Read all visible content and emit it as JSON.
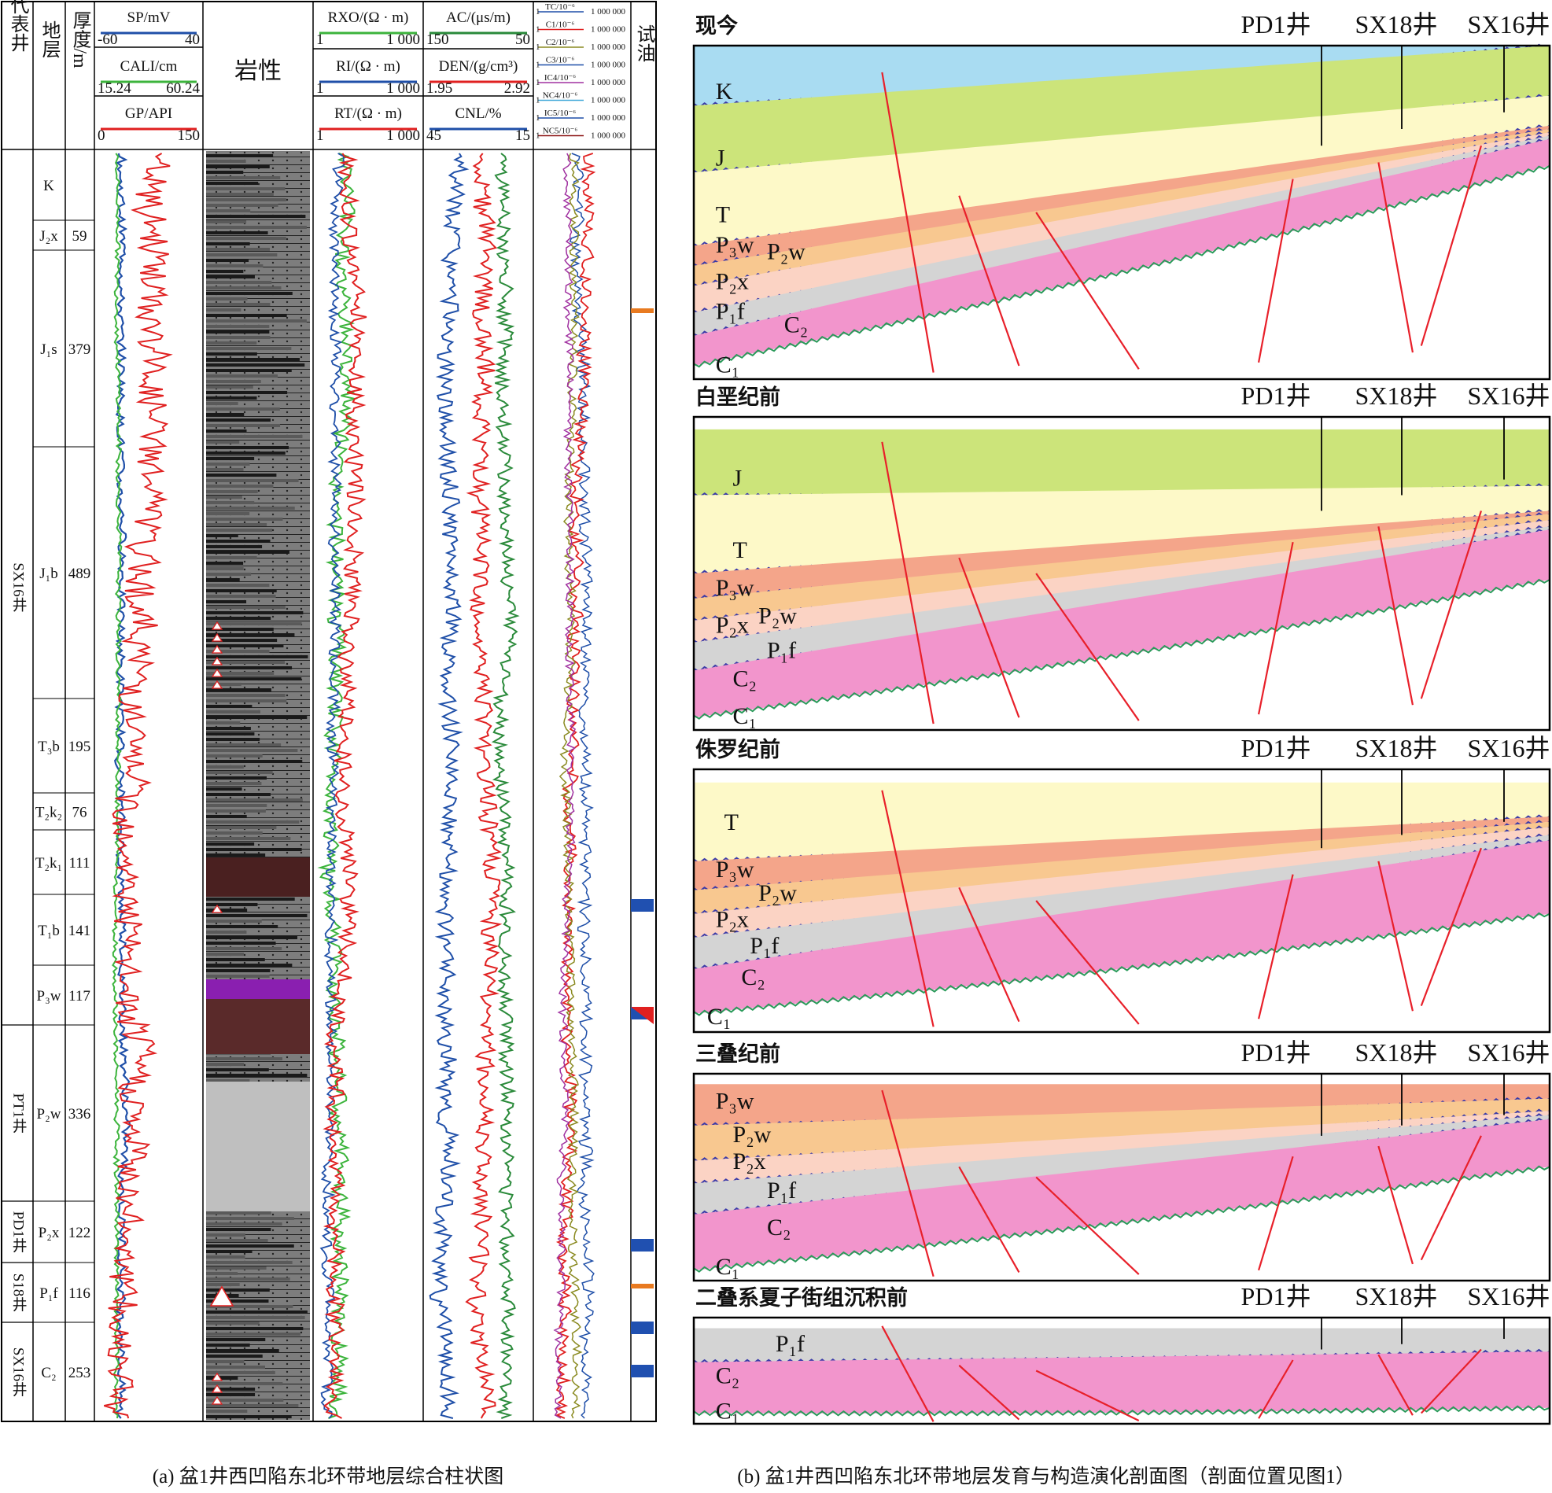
{
  "left_panel": {
    "header": {
      "well_col": "代表井",
      "strata_col": "地层",
      "thickness_col": "厚度/m",
      "litho_col": "岩性",
      "oil_test_col": "试油",
      "tracks": [
        {
          "name": "SP/mV",
          "min": "-60",
          "max": "40",
          "color": "#1f4fa8"
        },
        {
          "name": "CALI/cm",
          "min": "15.24",
          "max": "60.24",
          "color": "#3cb43c"
        },
        {
          "name": "GP/API",
          "min": "0",
          "max": "150",
          "color": "#e02020"
        },
        {
          "name": "RXO/(Ω · m)",
          "min": "1",
          "max": "1 000",
          "color": "#3cb43c"
        },
        {
          "name": "RI/(Ω · m)",
          "min": "1",
          "max": "1 000",
          "color": "#1f4fa8"
        },
        {
          "name": "RT/(Ω · m)",
          "min": "1",
          "max": "1 000",
          "color": "#e02020"
        },
        {
          "name": "AC/(μs/m)",
          "min": "150",
          "max": "50",
          "color": "#2a8a3a"
        },
        {
          "name": "DEN/(g/cm³)",
          "min": "1.95",
          "max": "2.92",
          "color": "#e02020"
        },
        {
          "name": "CNL/%",
          "min": "45",
          "max": "15",
          "color": "#1f4fa8"
        }
      ],
      "gas_tracks": [
        {
          "name": "TC/10⁻⁶",
          "max": "1 000 000",
          "color": "#1f4fa8"
        },
        {
          "name": "C1/10⁻⁶",
          "max": "1 000 000",
          "color": "#e02020"
        },
        {
          "name": "C2/10⁻⁶",
          "max": "1 000 000",
          "color": "#8a8a20"
        },
        {
          "name": "C3/10⁻⁶",
          "max": "1 000 000",
          "color": "#1f4fa8"
        },
        {
          "name": "IC4/10⁻⁶",
          "max": "1 000 000",
          "color": "#a030a0"
        },
        {
          "name": "NC4/10⁻⁶",
          "max": "1 000 000",
          "color": "#40a8d8"
        },
        {
          "name": "IC5/10⁻⁶",
          "max": "1 000 000",
          "color": "#1f4fa8"
        },
        {
          "name": "NC5/10⁻⁶",
          "max": "1 000 000",
          "color": "#8a1010"
        }
      ],
      "gas_min": "1"
    },
    "wells": [
      "SX16井",
      "PT1井",
      "PD1井",
      "S18井",
      "SX16井"
    ],
    "strata": [
      {
        "name": "K",
        "thickness": ""
      },
      {
        "name": "J₂x",
        "thickness": "59"
      },
      {
        "name": "J₁s",
        "thickness": "379"
      },
      {
        "name": "J₁b",
        "thickness": "489"
      },
      {
        "name": "T₃b",
        "thickness": "195"
      },
      {
        "name": "T₂k₂",
        "thickness": "76"
      },
      {
        "name": "T₂k₁",
        "thickness": "111"
      },
      {
        "name": "T₁b",
        "thickness": "141"
      },
      {
        "name": "P₃w",
        "thickness": "117"
      },
      {
        "name": "P₂w",
        "thickness": "336"
      },
      {
        "name": "P₂x",
        "thickness": "122"
      },
      {
        "name": "P₁f",
        "thickness": "116"
      },
      {
        "name": "C₂",
        "thickness": "253"
      }
    ],
    "caption": "(a) 盆1井西凹陷东北环带地层综合柱状图"
  },
  "right_panel": {
    "well_names": [
      "PD1井",
      "SX18井",
      "SX16井"
    ],
    "sections": [
      {
        "title": "现今",
        "labels": [
          "K",
          "J",
          "T",
          "P₃w",
          "P₂w",
          "P₂x",
          "P₁f",
          "C₂",
          "C₁"
        ]
      },
      {
        "title": "白垩纪前",
        "labels": [
          "J",
          "T",
          "P₃w",
          "P₂w",
          "P₂x",
          "P₁f",
          "C₂",
          "C₁"
        ]
      },
      {
        "title": "侏罗纪前",
        "labels": [
          "T",
          "P₃w",
          "P₂w",
          "P₂x",
          "P₁f",
          "C₂",
          "C₁"
        ]
      },
      {
        "title": "三叠纪前",
        "labels": [
          "P₃w",
          "P₂w",
          "P₂x",
          "P₁f",
          "C₂",
          "C₁"
        ]
      },
      {
        "title": "二叠系夏子街组沉积前",
        "labels": [
          "P₁f",
          "C₂",
          "C₁"
        ]
      }
    ],
    "caption": "(b) 盆1井西凹陷东北环带地层发育与构造演化剖面图（剖面位置见图1）"
  },
  "colors": {
    "K": "#a9dcf2",
    "J": "#cce47a",
    "T": "#fdf9c8",
    "P3w": "#f4a58a",
    "P2w": "#f8c890",
    "P2x": "#fbd3c4",
    "P1f": "#d4d4d4",
    "C2": "#f295cc",
    "fault": "#e8202a",
    "unconformity": "#3a3aa8",
    "base": "#2a9a5a"
  }
}
